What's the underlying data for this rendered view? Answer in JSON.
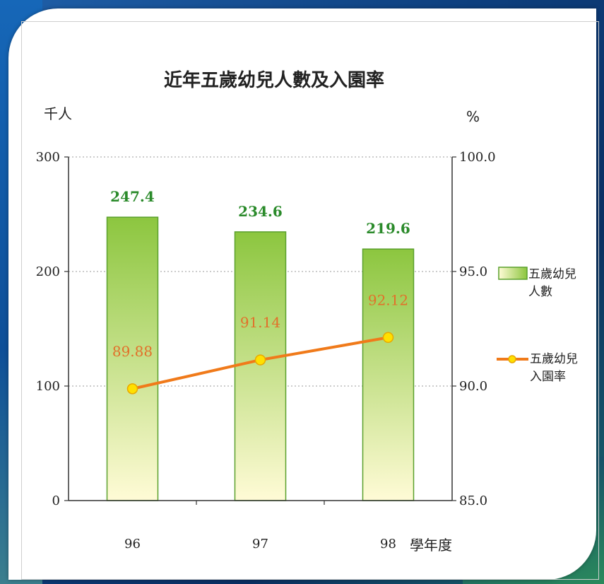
{
  "chart_data": {
    "type": "bar",
    "title": "近年五歲幼兒人數及入園率",
    "categories": [
      "96",
      "97",
      "98"
    ],
    "xlabel": "學年度",
    "ylabel_left": "千人",
    "ylabel_right": "%",
    "ylim_left": [
      0,
      300
    ],
    "ylim_right": [
      85.0,
      100.0
    ],
    "yticks_left": [
      "0",
      "100",
      "200",
      "300"
    ],
    "yticks_right": [
      "85.0",
      "90.0",
      "95.0",
      "100.0"
    ],
    "grid": true,
    "legend_position": "right",
    "series": [
      {
        "name": "五歲幼兒人數",
        "type": "bar",
        "axis": "left",
        "values": [
          247.4,
          234.6,
          219.6
        ],
        "labels": [
          "247.4",
          "234.6",
          "219.6"
        ]
      },
      {
        "name": "五歲幼兒入園率",
        "type": "line",
        "axis": "right",
        "values": [
          89.88,
          91.14,
          92.12
        ],
        "labels": [
          "89.88",
          "91.14",
          "92.12"
        ]
      }
    ],
    "legend": {
      "bar_lines": [
        "五歲幼兒",
        "人數"
      ],
      "line_lines": [
        "五歲幼兒",
        "入園率"
      ]
    },
    "colors": {
      "bar_top": "#8cc63f",
      "bar_bottom": "#fffbd6",
      "bar_stroke": "#5aa02c",
      "line": "#f07a1a",
      "marker_fill": "#ffe000",
      "marker_stroke": "#e8a800",
      "bar_label": "#2a8a2a",
      "rate_label": "#e2702a"
    }
  }
}
